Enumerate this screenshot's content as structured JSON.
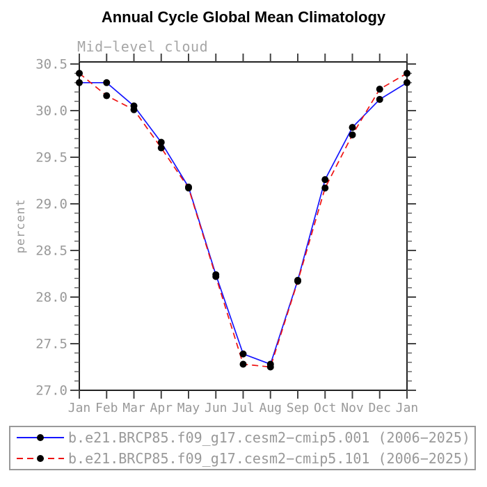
{
  "header": {
    "title": "Annual Cycle Global Mean Climatology",
    "subtitle": "Mid−level cloud"
  },
  "chart_data": {
    "type": "line",
    "title": "Annual Cycle Global Mean Climatology",
    "subtitle": "Mid−level cloud",
    "xlabel": "",
    "ylabel": "percent",
    "categories": [
      "Jan",
      "Feb",
      "Mar",
      "Apr",
      "May",
      "Jun",
      "Jul",
      "Aug",
      "Sep",
      "Oct",
      "Nov",
      "Dec",
      "Jan"
    ],
    "ylim": [
      27.0,
      30.52
    ],
    "ytick_labels": [
      "27.0",
      "27.5",
      "28.0",
      "28.5",
      "29.0",
      "29.5",
      "30.0",
      "30.5"
    ],
    "ytick_interval": 0.5,
    "minor_ytick_interval": 0.1,
    "grid": false,
    "legend_position": "bottom",
    "series": [
      {
        "name": "b.e21.BRCP85.f09_g17.cesm2−cmip5.001 (2006−2025)",
        "color": "#1414ff",
        "line_style": "solid",
        "marker": "filled-circle",
        "marker_color": "#000000",
        "values": [
          30.3,
          30.3,
          30.05,
          29.66,
          29.18,
          28.24,
          27.39,
          27.28,
          28.18,
          29.26,
          29.82,
          30.12,
          30.3
        ]
      },
      {
        "name": "b.e21.BRCP85.f09_g17.cesm2−cmip5.101 (2006−2025)",
        "color": "#ee1111",
        "line_style": "dashed",
        "marker": "filled-circle",
        "marker_color": "#000000",
        "values": [
          30.4,
          30.16,
          30.01,
          29.6,
          29.17,
          28.22,
          27.28,
          27.25,
          28.17,
          29.17,
          29.74,
          30.23,
          30.4
        ]
      }
    ]
  },
  "colors": {
    "frame": "#222222",
    "major_tick": "#444444",
    "minor_tick": "#555555",
    "tick_label": "#999999",
    "title_text": "#000000",
    "subtitle_text": "#a6a6a6",
    "legend_border": "#999999",
    "legend_text": "#999999",
    "marker": "#000000"
  }
}
